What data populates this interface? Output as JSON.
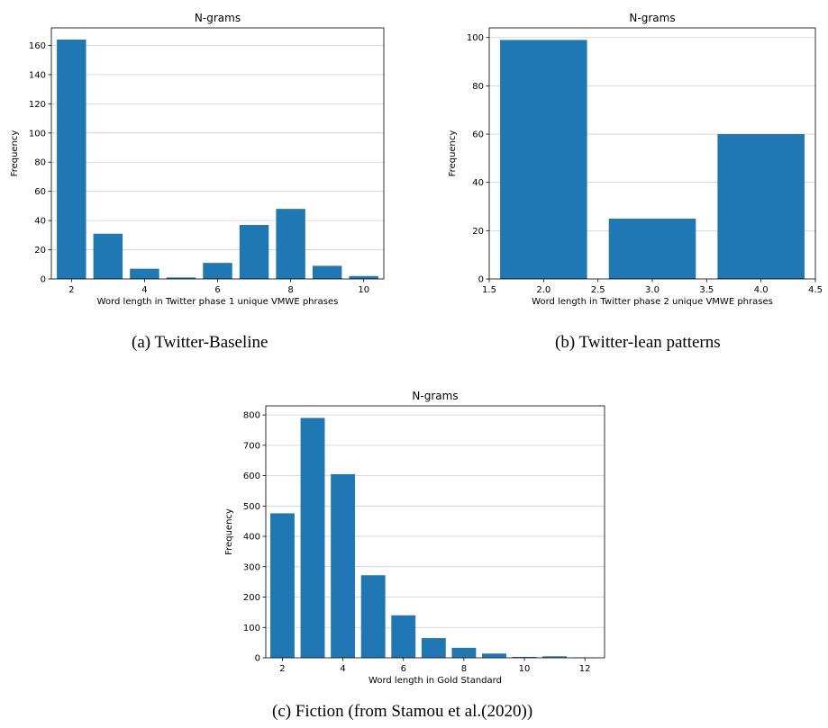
{
  "colors": {
    "bar": "#1f77b4",
    "grid": "#d0d0d0",
    "axis": "#000000"
  },
  "captions": [
    "(a)  Twitter-Baseline",
    "(b)  Twitter-lean patterns",
    "(c)  Fiction (from Stamou et al.(2020))"
  ],
  "chart_data": [
    {
      "type": "bar",
      "title": "N-grams",
      "xlabel": "Word length in Twitter phase 1 unique VMWE phrases",
      "ylabel": "Frequency",
      "x": [
        2,
        3,
        4,
        5,
        6,
        7,
        8,
        9,
        10
      ],
      "values": [
        164,
        31,
        7,
        1,
        11,
        37,
        48,
        9,
        2
      ],
      "bar_width": 0.8,
      "xlim": [
        1.45,
        10.55
      ],
      "ylim": [
        0,
        172
      ],
      "xticks": [
        2,
        4,
        6,
        8,
        10
      ],
      "xtick_labels": [
        "2",
        "4",
        "6",
        "8",
        "10"
      ],
      "yticks": [
        0,
        20,
        40,
        60,
        80,
        100,
        120,
        140,
        160
      ],
      "ytick_labels": [
        "0",
        "20",
        "40",
        "60",
        "80",
        "100",
        "120",
        "140",
        "160"
      ],
      "grid": "y"
    },
    {
      "type": "bar",
      "title": "N-grams",
      "xlabel": "Word length in Twitter phase 2 unique VMWE phrases",
      "ylabel": "Frequency",
      "x": [
        2.0,
        3.0,
        4.0
      ],
      "values": [
        99,
        25,
        60
      ],
      "bar_width": 0.8,
      "xlim": [
        1.5,
        4.5
      ],
      "ylim": [
        0,
        104
      ],
      "xticks": [
        1.5,
        2.0,
        2.5,
        3.0,
        3.5,
        4.0,
        4.5
      ],
      "xtick_labels": [
        "1.5",
        "2.0",
        "2.5",
        "3.0",
        "3.5",
        "4.0",
        "4.5"
      ],
      "yticks": [
        0,
        20,
        40,
        60,
        80,
        100
      ],
      "ytick_labels": [
        "0",
        "20",
        "40",
        "60",
        "80",
        "100"
      ],
      "grid": "y"
    },
    {
      "type": "bar",
      "title": "N-grams",
      "xlabel": "Word length in Gold Standard",
      "ylabel": "Frequency",
      "x": [
        2,
        3,
        4,
        5,
        6,
        7,
        8,
        9,
        10,
        11,
        12
      ],
      "values": [
        476,
        790,
        605,
        272,
        140,
        65,
        33,
        14,
        3,
        5,
        1
      ],
      "bar_width": 0.8,
      "xlim": [
        1.45,
        12.65
      ],
      "ylim": [
        0,
        830
      ],
      "xticks": [
        2,
        4,
        6,
        8,
        10,
        12
      ],
      "xtick_labels": [
        "2",
        "4",
        "6",
        "8",
        "10",
        "12"
      ],
      "yticks": [
        0,
        100,
        200,
        300,
        400,
        500,
        600,
        700,
        800
      ],
      "ytick_labels": [
        "0",
        "100",
        "200",
        "300",
        "400",
        "500",
        "600",
        "700",
        "800"
      ],
      "grid": "y"
    }
  ]
}
